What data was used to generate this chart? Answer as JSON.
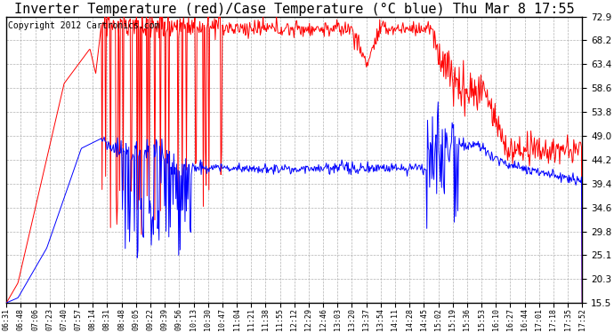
{
  "title": "Inverter Temperature (red)/Case Temperature (°C blue) Thu Mar 8 17:55",
  "copyright": "Copyright 2012 Cartronics.com",
  "yticks": [
    15.5,
    20.3,
    25.1,
    29.8,
    34.6,
    39.4,
    44.2,
    49.0,
    53.8,
    58.6,
    63.4,
    68.2,
    72.9
  ],
  "ylim": [
    15.5,
    72.9
  ],
  "background_color": "#ffffff",
  "plot_bg_color": "#ffffff",
  "grid_color": "#aaaaaa",
  "red_color": "#ff0000",
  "blue_color": "#0000ff",
  "title_fontsize": 11,
  "copyright_fontsize": 7,
  "x_labels": [
    "06:31",
    "06:48",
    "07:06",
    "07:23",
    "07:40",
    "07:57",
    "08:14",
    "08:31",
    "08:48",
    "09:05",
    "09:22",
    "09:39",
    "09:56",
    "10:13",
    "10:30",
    "10:47",
    "11:04",
    "11:21",
    "11:38",
    "11:55",
    "12:12",
    "12:29",
    "12:46",
    "13:03",
    "13:20",
    "13:37",
    "13:54",
    "14:11",
    "14:28",
    "14:45",
    "15:02",
    "15:19",
    "15:36",
    "15:53",
    "16:10",
    "16:27",
    "16:44",
    "17:01",
    "17:18",
    "17:35",
    "17:52"
  ]
}
